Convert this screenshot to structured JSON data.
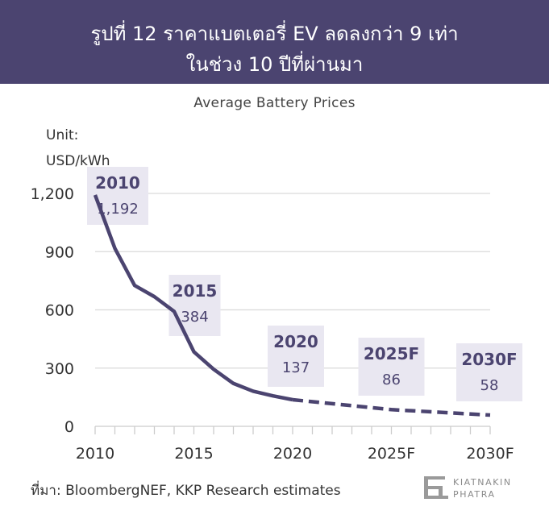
{
  "header": {
    "title_line1": "รูปที่ 12 ราคาแบตเตอรี่ EV ลดลงกว่า 9 เท่า",
    "title_line2": "ในช่วง 10 ปีที่ผ่านมา"
  },
  "source": "ที่มา: BloombergNEF, KKP Research estimates",
  "logo": {
    "line1": "KIATNAKIN",
    "line2": "PHATRA"
  },
  "colors": {
    "header_bg": "#4b4470",
    "line": "#4b4470",
    "label_box": "#e9e7f1",
    "grid": "#d9d9d9"
  },
  "chart_data": {
    "type": "line",
    "title": "Average Battery Prices",
    "unit_line1": "Unit:",
    "unit_line2": "USD/kWh",
    "xlim": [
      2010,
      2030
    ],
    "ylim": [
      0,
      1200
    ],
    "y_ticks": [
      {
        "value": 0,
        "label": "0"
      },
      {
        "value": 300,
        "label": "300"
      },
      {
        "value": 600,
        "label": "600"
      },
      {
        "value": 900,
        "label": "900"
      },
      {
        "value": 1200,
        "label": "1,200"
      }
    ],
    "x_ticks": [
      {
        "value": 2010,
        "label": "2010"
      },
      {
        "value": 2015,
        "label": "2015"
      },
      {
        "value": 2020,
        "label": "2020"
      },
      {
        "value": 2025,
        "label": "2025F"
      },
      {
        "value": 2030,
        "label": "2030F"
      }
    ],
    "series": [
      {
        "style": "solid",
        "x": [
          2010,
          2011,
          2012,
          2013,
          2014,
          2015,
          2016,
          2017,
          2018,
          2019,
          2020
        ],
        "y": [
          1192,
          917,
          726,
          668,
          592,
          384,
          294,
          221,
          181,
          157,
          137
        ]
      },
      {
        "style": "dashed",
        "x": [
          2020,
          2025,
          2030
        ],
        "y": [
          137,
          86,
          58
        ]
      }
    ],
    "annotations": [
      {
        "x": 2010,
        "y": 1192,
        "year": "2010",
        "value": "1,192"
      },
      {
        "x": 2015,
        "y": 384,
        "year": "2015",
        "value": "384"
      },
      {
        "x": 2020,
        "y": 137,
        "year": "2020",
        "value": "137"
      },
      {
        "x": 2025,
        "y": 86,
        "year": "2025F",
        "value": "86"
      },
      {
        "x": 2030,
        "y": 58,
        "year": "2030F",
        "value": "58"
      }
    ],
    "grid": true
  }
}
